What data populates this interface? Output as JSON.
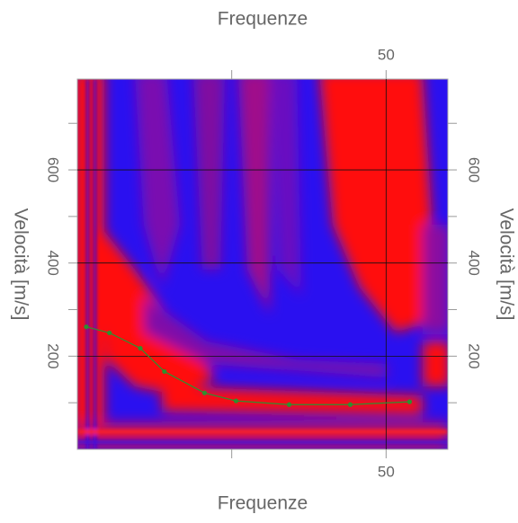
{
  "chart_data": {
    "type": "line",
    "x_label": "Frequenze",
    "y_label": "Velocità [m/s]",
    "xlim": [
      0,
      60
    ],
    "xticks": [
      50
    ],
    "xminor_ticks": [
      25
    ],
    "ylim": [
      0,
      795
    ],
    "yticks": [
      200,
      400,
      600
    ],
    "yminor_ticks": [
      100,
      300,
      500,
      700
    ],
    "grid": true,
    "series": [
      {
        "color": "#2f8f2f",
        "x": [
          1.45,
          5.2,
          10.2,
          14.1,
          20.6,
          25.7,
          34.3,
          44.2,
          53.8
        ],
        "values": [
          263,
          250,
          217,
          167,
          121,
          104,
          96,
          96,
          102
        ]
      }
    ]
  }
}
